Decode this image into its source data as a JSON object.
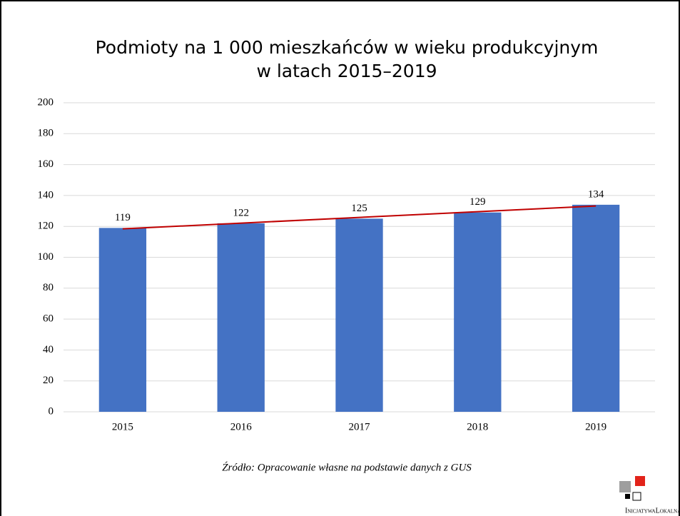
{
  "chart_data": {
    "type": "bar",
    "title": [
      "Podmioty na 1 000 mieszkańców w wieku produkcyjnym",
      "w latach 2015–2019"
    ],
    "categories": [
      "2015",
      "2016",
      "2017",
      "2018",
      "2019"
    ],
    "values": [
      119,
      122,
      125,
      129,
      134
    ],
    "color": "#4472c4",
    "ylim": [
      0,
      200
    ],
    "yticks": [
      0,
      20,
      40,
      60,
      80,
      100,
      120,
      140,
      160,
      180,
      200
    ],
    "grid": true,
    "trendline": {
      "type": "linear",
      "color": "#c00000"
    },
    "source": "Źródło: Opracowanie własne na podstawie danych z GUS"
  },
  "logo_text": "InicjatywaLokalna.pl"
}
